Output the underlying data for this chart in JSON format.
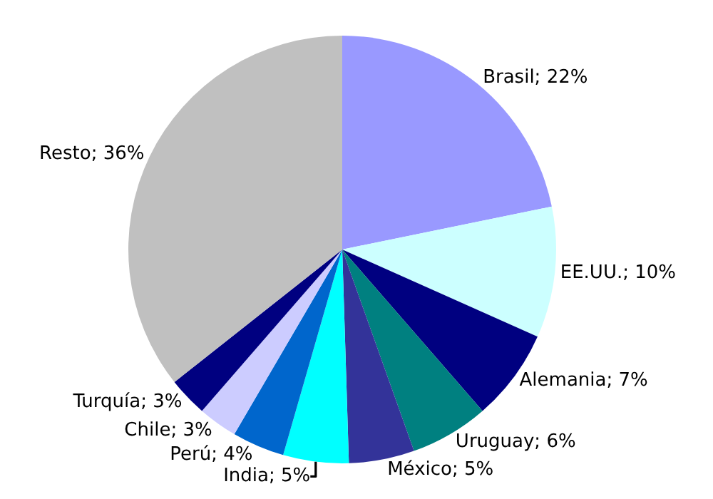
{
  "chart_data": {
    "type": "pie",
    "categories": [
      "Brasil",
      "EE.UU.",
      "Alemania",
      "Uruguay",
      "México",
      "India",
      "Perú",
      "Chile",
      "Turquía",
      "Resto"
    ],
    "values": [
      22,
      10,
      7,
      6,
      5,
      5,
      4,
      3,
      3,
      36
    ],
    "colors": [
      "#9999ff",
      "#ccffff",
      "#000080",
      "#008080",
      "#333399",
      "#00ffff",
      "#0066cc",
      "#ccccff",
      "#000080",
      "#c0c0c0"
    ],
    "value_labels": [
      "22%",
      "10%",
      "7%",
      "6%",
      "5%",
      "5%",
      "4%",
      "3%",
      "3%",
      "36%"
    ],
    "legend": false
  }
}
